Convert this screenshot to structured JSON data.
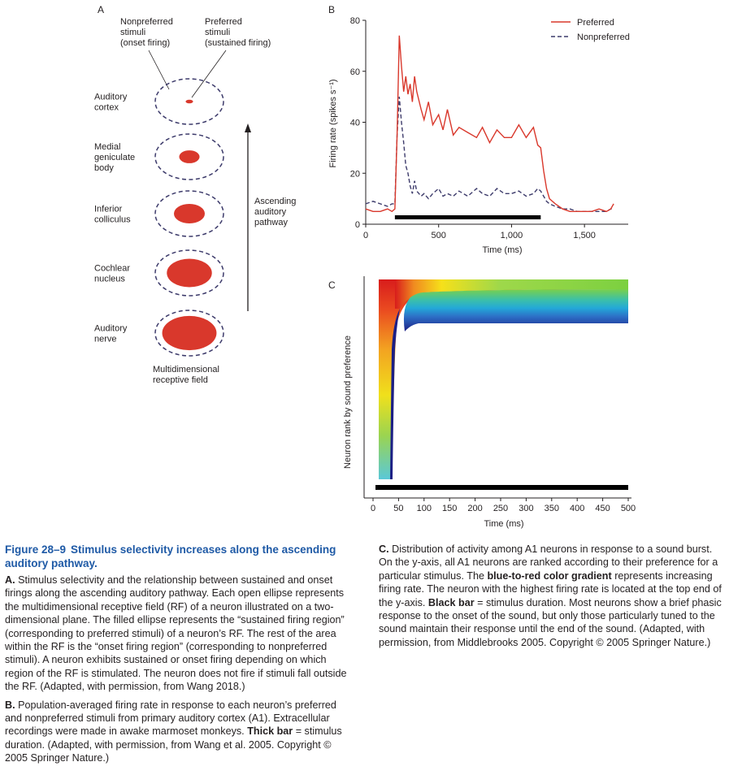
{
  "panel_a": {
    "letter": "A",
    "top_labels": {
      "nonpreferred": [
        "Nonpreferred",
        "stimuli",
        "(onset firing)"
      ],
      "preferred": [
        "Preferred",
        "stimuli",
        "(sustained firing)"
      ]
    },
    "levels": [
      {
        "label": [
          "Auditory",
          "cortex"
        ],
        "sustained_fraction": 0.12
      },
      {
        "label": [
          "Medial",
          "geniculate",
          "body"
        ],
        "sustained_fraction": 0.33
      },
      {
        "label": [
          "Inferior",
          "colliculus"
        ],
        "sustained_fraction": 0.5
      },
      {
        "label": [
          "Cochlear",
          "nucleus"
        ],
        "sustained_fraction": 0.73
      },
      {
        "label": [
          "Auditory",
          "nerve"
        ],
        "sustained_fraction": 0.88
      }
    ],
    "arrow_label": [
      "Ascending",
      "auditory",
      "pathway"
    ],
    "bottom_label": [
      "Multidimensional",
      "receptive field"
    ],
    "colors": {
      "sustained": "#d9382c",
      "rf_outline": "#3d3b6b"
    }
  },
  "panel_b": {
    "letter": "B",
    "chart_data": {
      "type": "line",
      "xlabel": "Time (ms)",
      "ylabel": "Firing rate (spikes s⁻¹)",
      "xlim": [
        0,
        1800
      ],
      "ylim": [
        0,
        80
      ],
      "xticks": [
        0,
        500,
        1000,
        1500
      ],
      "xtick_labels": [
        "0",
        "500",
        "1,000",
        "1,500"
      ],
      "yticks": [
        0,
        20,
        40,
        60,
        80
      ],
      "legend_position": "top-right",
      "stimulus_bar": [
        200,
        1200
      ],
      "series": [
        {
          "name": "Preferred",
          "color": "#d9382c",
          "dash": "solid",
          "x": [
            0,
            50,
            100,
            150,
            180,
            200,
            215,
            230,
            245,
            260,
            275,
            290,
            305,
            320,
            335,
            350,
            380,
            400,
            430,
            460,
            500,
            530,
            560,
            600,
            640,
            700,
            760,
            800,
            850,
            900,
            950,
            1000,
            1050,
            1100,
            1150,
            1180,
            1200,
            1220,
            1240,
            1260,
            1300,
            1350,
            1400,
            1450,
            1500,
            1550,
            1600,
            1650,
            1680,
            1700
          ],
          "y": [
            6,
            5,
            5,
            6,
            5,
            6,
            35,
            74,
            62,
            52,
            58,
            51,
            55,
            48,
            58,
            52,
            45,
            41,
            48,
            39,
            43,
            37,
            45,
            35,
            38,
            36,
            34,
            38,
            32,
            37,
            34,
            34,
            39,
            34,
            38,
            31,
            30,
            21,
            14,
            10,
            8,
            6,
            5,
            5,
            5,
            5,
            6,
            5,
            6,
            8
          ]
        },
        {
          "name": "Nonpreferred",
          "color": "#3d3b6b",
          "dash": "dashed",
          "x": [
            0,
            50,
            100,
            150,
            180,
            200,
            215,
            230,
            245,
            260,
            275,
            290,
            305,
            320,
            335,
            350,
            380,
            400,
            430,
            460,
            500,
            530,
            560,
            600,
            640,
            700,
            760,
            800,
            850,
            900,
            950,
            1000,
            1050,
            1100,
            1150,
            1180,
            1200,
            1220,
            1240,
            1260,
            1300,
            1350,
            1400,
            1450,
            1500,
            1550,
            1600,
            1650,
            1680,
            1700
          ],
          "y": [
            8,
            9,
            8,
            7,
            8,
            8,
            35,
            50,
            40,
            32,
            23,
            20,
            15,
            12,
            17,
            13,
            11,
            12,
            10,
            12,
            14,
            11,
            12,
            11,
            13,
            11,
            14,
            12,
            11,
            14,
            12,
            12,
            13,
            11,
            12,
            14,
            13,
            11,
            9,
            8,
            7,
            6,
            6,
            5,
            5,
            5,
            5,
            5,
            6,
            6
          ]
        }
      ]
    }
  },
  "panel_c": {
    "letter": "C",
    "chart_data": {
      "type": "heatmap",
      "xlabel": "Time (ms)",
      "ylabel": "Neuron rank by sound preference",
      "xlim": [
        0,
        500
      ],
      "xticks": [
        0,
        50,
        100,
        150,
        200,
        250,
        300,
        350,
        400,
        450,
        500
      ],
      "stimulus_bar": [
        0,
        500
      ],
      "colormap": [
        "#1a1a80",
        "#2a4db3",
        "#1fb0d6",
        "#35c89c",
        "#a8dc2a",
        "#f5e61a",
        "#f5a020",
        "#ea4520",
        "#d81e1e"
      ],
      "colorbar_meaning": "firing rate (low → high)"
    }
  },
  "caption": {
    "figure_number": "Figure 28–9",
    "title": "Stimulus selectivity increases along the ascending auditory pathway.",
    "para_a": {
      "label": "A.",
      "text": "Stimulus selectivity and the relationship between sustained and onset firings along the ascending auditory pathway. Each open ellipse represents the multidimensional receptive field (RF) of a neuron illustrated on a two-dimensional plane. The filled ellipse represents the “sustained firing region” (corresponding to preferred stimuli) of a neuron’s RF. The rest of the area within the RF is the “onset firing region” (corresponding to nonpreferred stimuli). A neuron exhibits sustained or onset firing depending on which region of the RF is stimulated. The neuron does not fire if stimuli fall outside the RF. (Adapted, with permission, from Wang 2018.)"
    },
    "para_b": {
      "label": "B.",
      "text": "Population-averaged firing rate in response to each neuron’s preferred and nonpreferred stimuli from primary auditory cortex (A1). Extracellular recordings were made in awake marmoset monkeys.",
      "bold": "Thick bar",
      "text2": "= stimulus duration. (Adapted, with permission, from Wang et al. 2005. Copyright © 2005 Springer Nature.)"
    },
    "para_c": {
      "label": "C.",
      "text": "Distribution of activity among A1 neurons in response to a sound burst. On the y-axis, all A1 neurons are ranked according to their preference for a particular stimulus. The",
      "bold1": "blue-to-red color gradient",
      "text2": "represents increasing firing rate. The neuron with the highest firing rate is located at the top end of the y-axis.",
      "bold2": "Black bar",
      "text3": "= stimulus duration. Most neurons show a brief phasic response to the onset of the sound, but only those particularly tuned to the sound maintain their response until the end of the sound. (Adapted, with permission, from Middlebrooks 2005. Copyright © 2005 Springer Nature.)"
    }
  }
}
